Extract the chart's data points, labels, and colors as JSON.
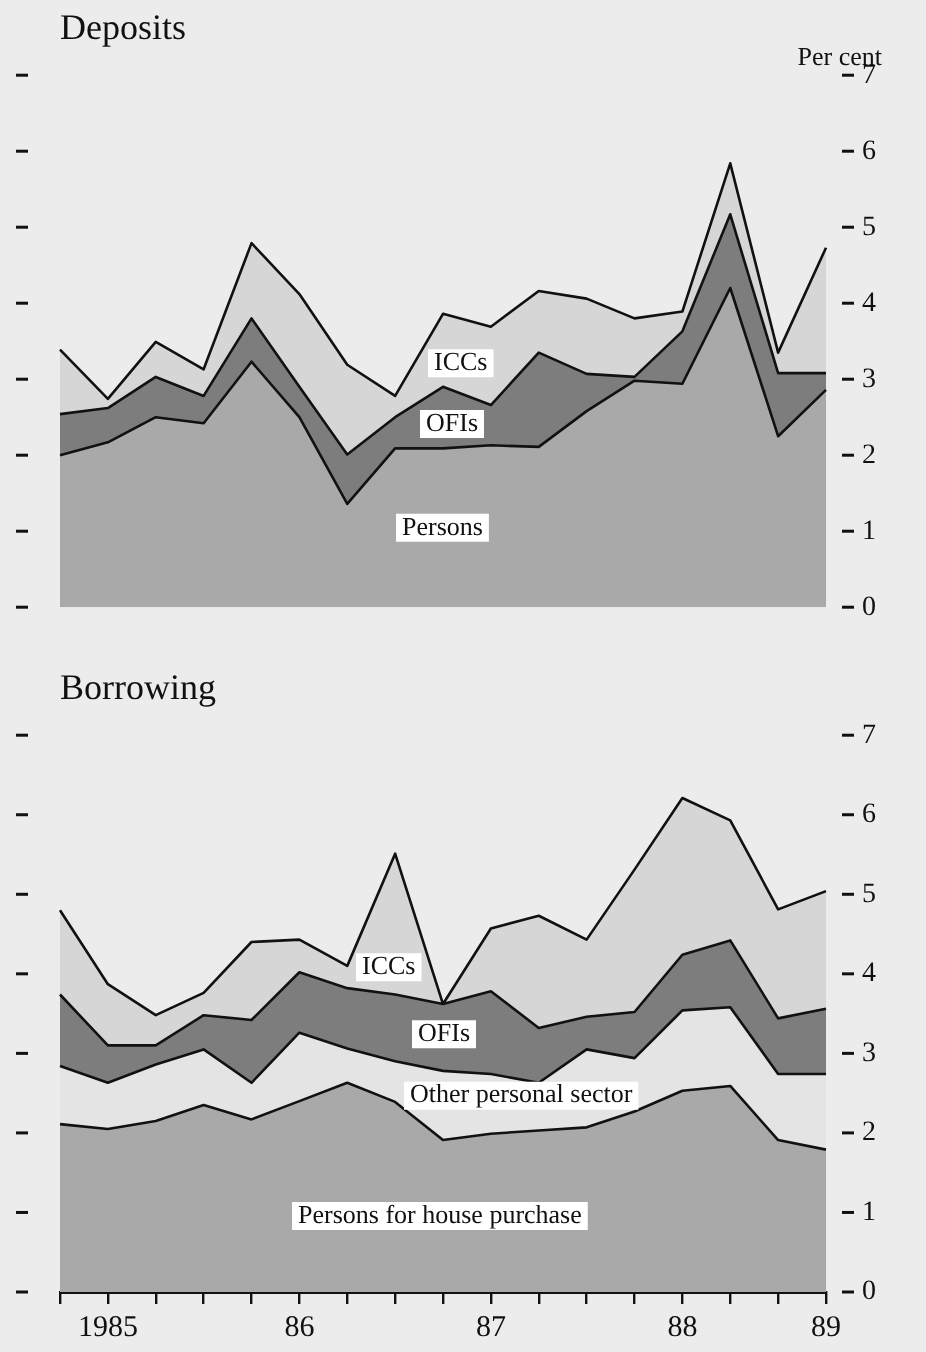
{
  "chart_data": [
    {
      "type": "area",
      "title": "Deposits",
      "ylabel": "Per cent",
      "stacked": true,
      "legend": false,
      "grid": false,
      "tick_labels": "y",
      "categories": [
        null,
        "1985",
        null,
        null,
        null,
        "86",
        null,
        null,
        null,
        "87",
        null,
        null,
        null,
        "88",
        null,
        null,
        "89"
      ],
      "ylim": [
        0,
        7
      ],
      "yticks": [
        0,
        1,
        2,
        3,
        4,
        5,
        6,
        7
      ],
      "series": [
        {
          "name": "Persons",
          "color": "#a9a9a9",
          "values": [
            2.0,
            2.17,
            2.5,
            2.42,
            3.23,
            2.5,
            1.36,
            2.09,
            2.09,
            2.13,
            2.11,
            2.58,
            2.98,
            2.94,
            4.2,
            2.25,
            2.86
          ]
        },
        {
          "name": "OFIs",
          "color": "#7d7d7d",
          "values": [
            0.54,
            0.45,
            0.53,
            0.36,
            0.57,
            0.4,
            0.65,
            0.41,
            0.81,
            0.53,
            1.24,
            0.49,
            0.05,
            0.69,
            0.97,
            0.83,
            0.22
          ]
        },
        {
          "name": "ICCs",
          "color": "#d6d6d6",
          "values": [
            0.85,
            0.12,
            0.46,
            0.35,
            0.99,
            1.22,
            1.18,
            0.28,
            0.96,
            1.03,
            0.81,
            0.99,
            0.77,
            0.26,
            0.67,
            0.27,
            1.65
          ]
        }
      ]
    },
    {
      "type": "area",
      "title": "Borrowing",
      "stacked": true,
      "legend": false,
      "grid": false,
      "categories": [
        null,
        "1985",
        null,
        null,
        null,
        "86",
        null,
        null,
        null,
        "87",
        null,
        null,
        null,
        "88",
        null,
        null,
        "89"
      ],
      "ylim": [
        0,
        7
      ],
      "yticks": [
        0,
        1,
        2,
        3,
        4,
        5,
        6,
        7
      ],
      "series": [
        {
          "name": "Persons for house purchase",
          "color": "#a9a9a9",
          "values": [
            2.11,
            2.05,
            2.15,
            2.35,
            2.17,
            2.4,
            2.63,
            2.39,
            1.91,
            1.99,
            2.03,
            2.07,
            2.27,
            2.53,
            2.59,
            1.91,
            1.79
          ]
        },
        {
          "name": "Other personal sector",
          "color": "#e4e4e4",
          "values": [
            0.73,
            0.58,
            0.71,
            0.7,
            0.46,
            0.86,
            0.43,
            0.51,
            0.87,
            0.75,
            0.6,
            0.98,
            0.67,
            1.01,
            0.99,
            0.83,
            0.95
          ]
        },
        {
          "name": "OFIs",
          "color": "#7d7d7d",
          "values": [
            0.9,
            0.47,
            0.24,
            0.43,
            0.79,
            0.76,
            0.76,
            0.84,
            0.84,
            1.04,
            0.69,
            0.41,
            0.58,
            0.7,
            0.84,
            0.7,
            0.82
          ]
        },
        {
          "name": "ICCs",
          "color": "#d6d6d6",
          "values": [
            1.06,
            0.77,
            0.38,
            0.28,
            0.98,
            0.41,
            0.28,
            1.77,
            0.0,
            0.79,
            1.41,
            0.97,
            1.79,
            1.97,
            1.51,
            1.37,
            1.48
          ]
        }
      ]
    }
  ]
}
